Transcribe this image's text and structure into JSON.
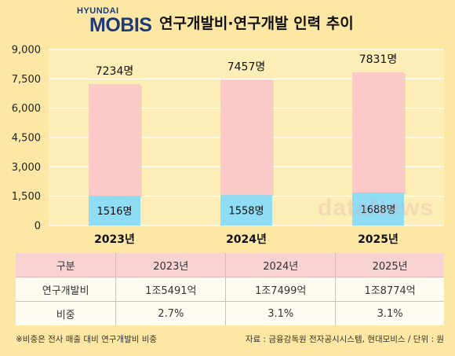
{
  "header": {
    "logo_top": "HYUNDAI",
    "logo_bottom": "MOBIS",
    "title": "연구개발비·연구개발 인력 추이"
  },
  "chart_data": {
    "type": "bar",
    "stacked": true,
    "categories": [
      "2023년",
      "2024년",
      "2025년"
    ],
    "series": [
      {
        "values": [
          1516,
          1558,
          1688
        ],
        "color": "#8fdcf5"
      },
      {
        "values": [
          7234,
          7457,
          7831
        ],
        "color": "#fcc9c9"
      }
    ],
    "total_labels": [
      "7234명",
      "7457명",
      "7831명"
    ],
    "bottom_labels": [
      "1516명",
      "1558명",
      "1688명"
    ],
    "yticks": [
      "0",
      "1,500",
      "3,000",
      "4,500",
      "6,000",
      "7,500",
      "9,000"
    ],
    "ytick_values": [
      0,
      1500,
      3000,
      4500,
      6000,
      7500,
      9000
    ],
    "ylim": [
      0,
      9000
    ],
    "grid": true
  },
  "table": {
    "header": [
      "구분",
      "2023년",
      "2024년",
      "2025년"
    ],
    "rows": [
      [
        "연구개발비",
        "1조5491억",
        "1조7499억",
        "1조8774억"
      ],
      [
        "비중",
        "2.7%",
        "3.1%",
        "3.1%"
      ]
    ]
  },
  "footnote": "※비중은 전사 매출 대비 연구개발비 비중",
  "source": "자료 : 금융감독원 전자공시시스템, 현대모비스 / 단위 : 원",
  "watermark": "dataNews"
}
